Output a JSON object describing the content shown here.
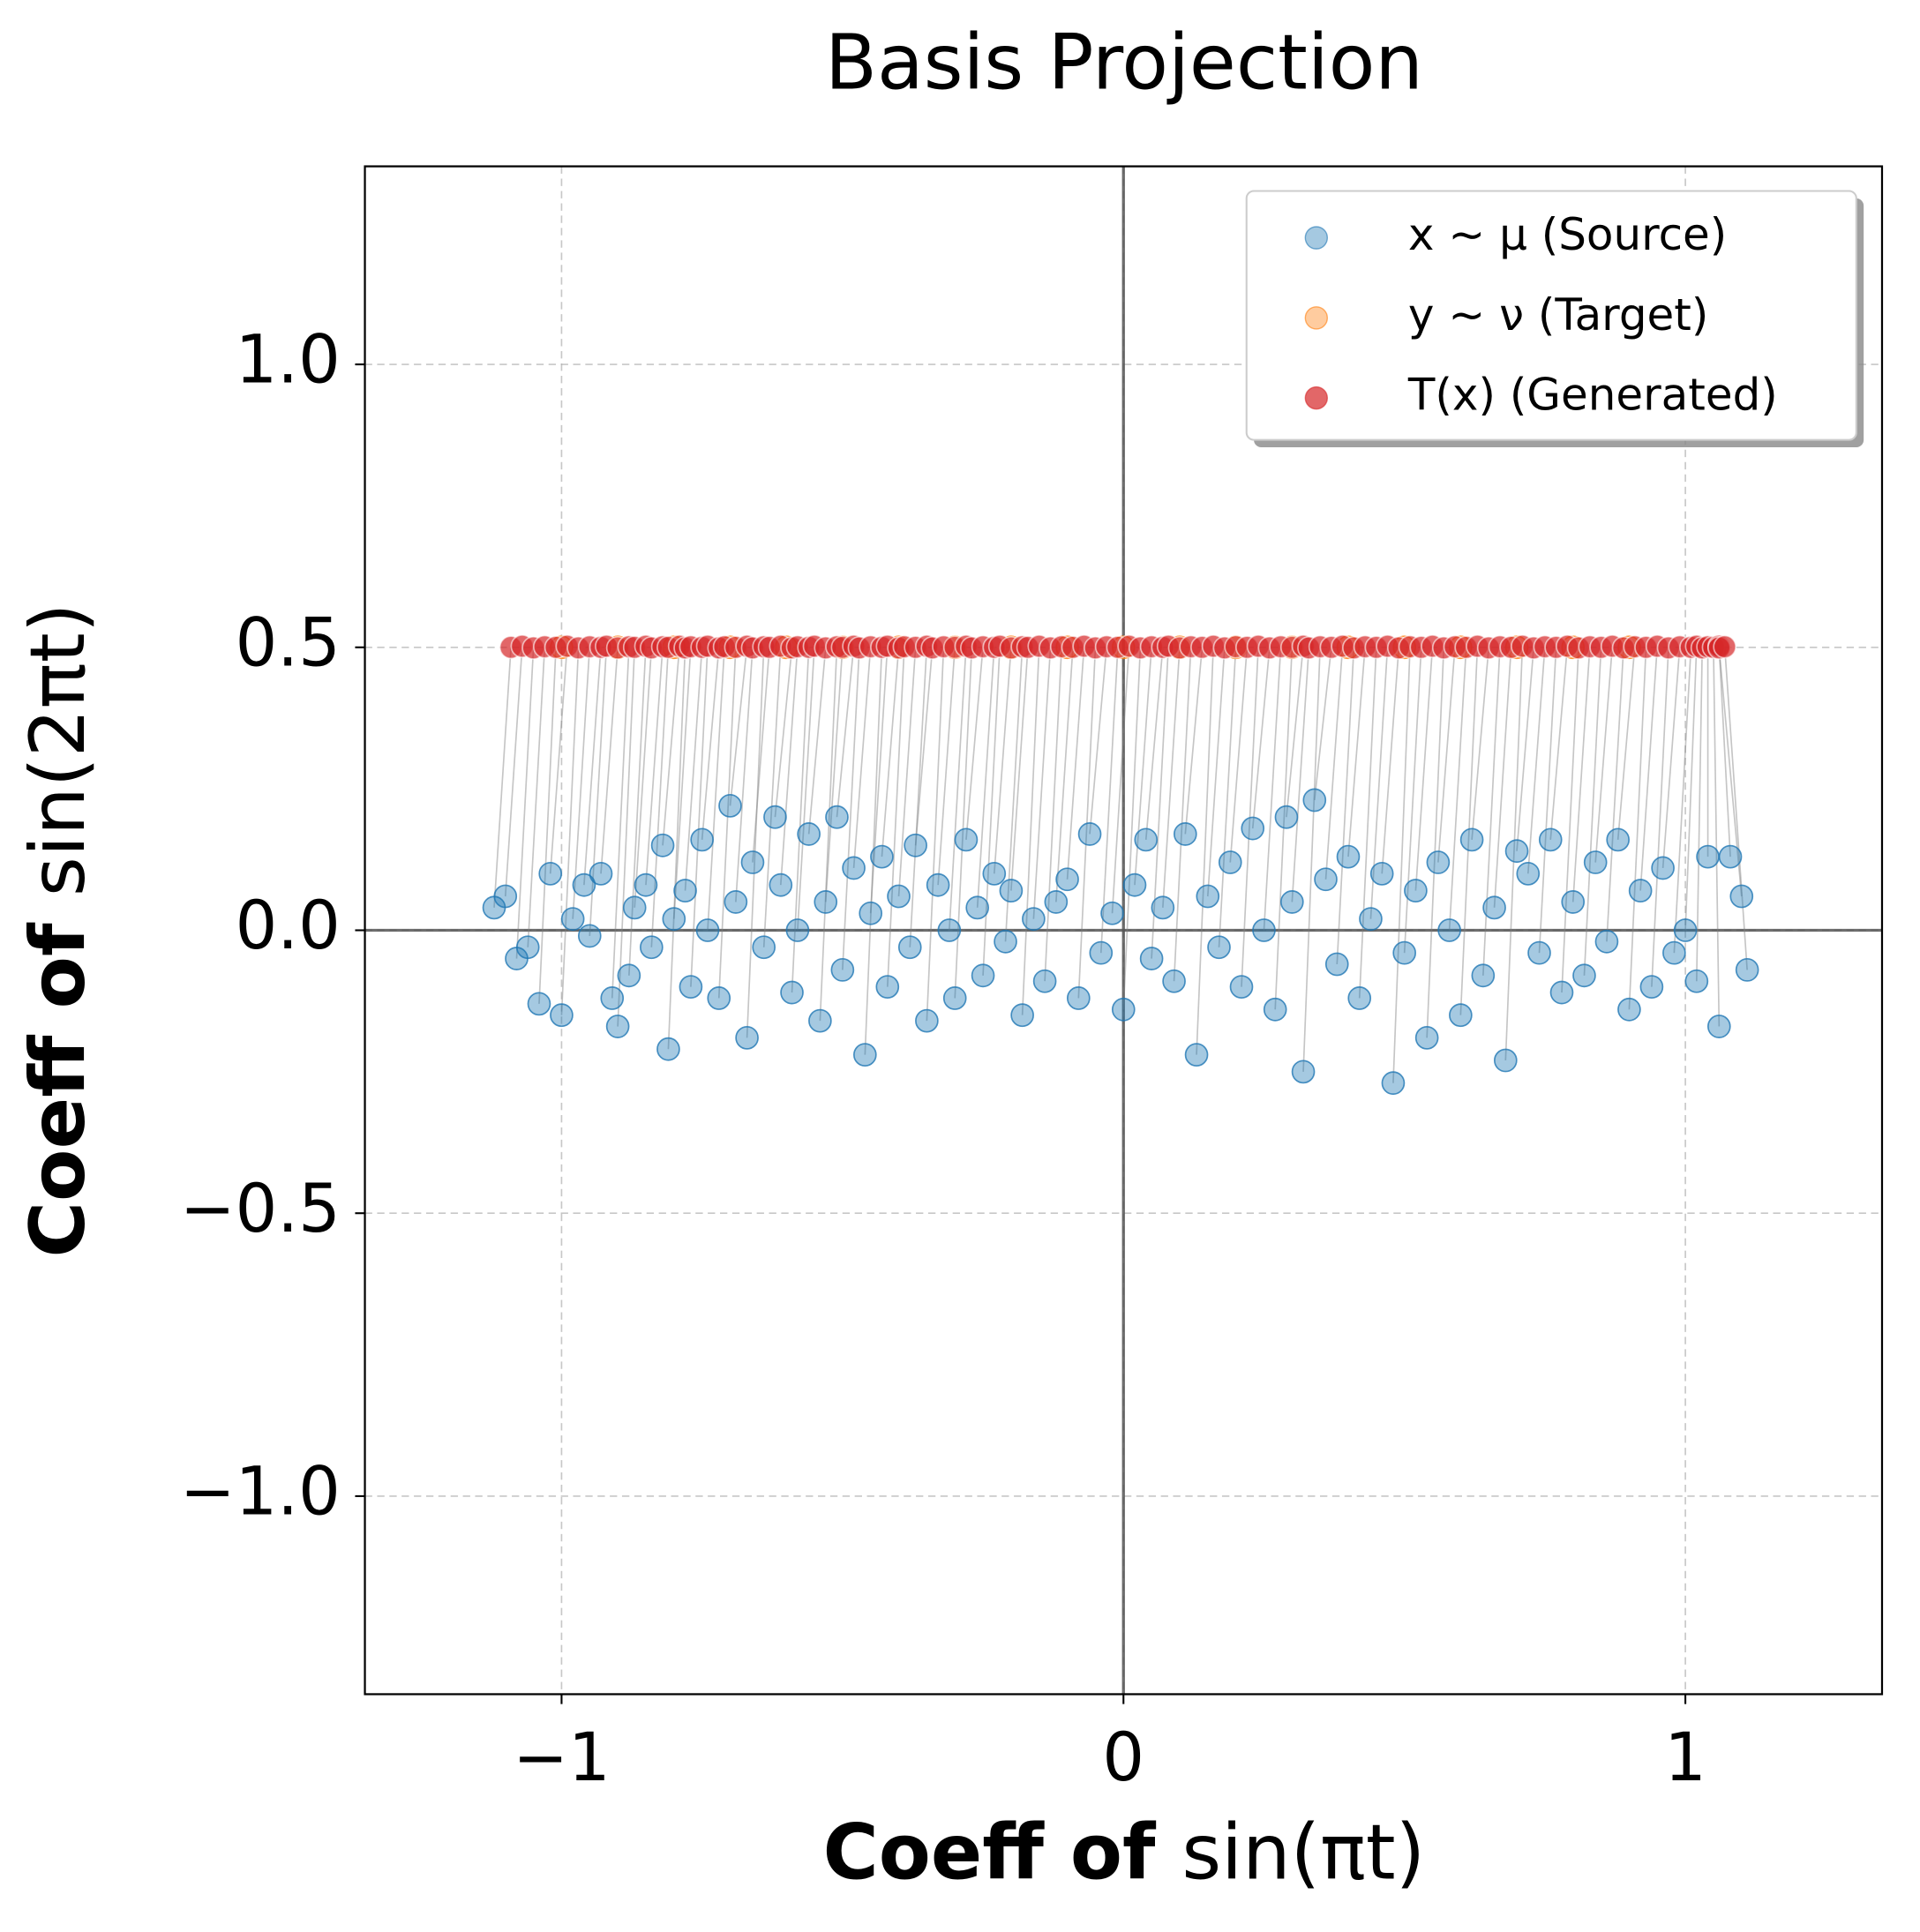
{
  "chart_data": {
    "type": "scatter",
    "title": "Basis Projection",
    "x_label": [
      "Coeff of ",
      "sin(πt)"
    ],
    "y_label": [
      "Coeff of ",
      "sin(2πt)"
    ],
    "xlim": [
      -1.35,
      1.35
    ],
    "ylim": [
      -1.35,
      1.35
    ],
    "xticks": [
      {
        "value": -1,
        "label": "−1"
      },
      0,
      1
    ],
    "yticks": [
      {
        "value": -1.0,
        "label": "−1.0"
      },
      {
        "value": -0.5,
        "label": "−0.5"
      },
      {
        "value": 0.0,
        "label": "0.0"
      },
      {
        "value": 0.5,
        "label": "0.5"
      },
      {
        "value": 1.0,
        "label": "1.0"
      }
    ],
    "grid": true,
    "legend": "upper right",
    "series": [
      {
        "name": "x ∼ μ (Source)",
        "color": "#1f77b4",
        "x": [
          -1.12,
          -1.1,
          -1.08,
          -1.06,
          -1.04,
          -1.02,
          -1.0,
          -0.98,
          -0.96,
          -0.95,
          -0.93,
          -0.91,
          -0.9,
          -0.88,
          -0.87,
          -0.85,
          -0.84,
          -0.82,
          -0.81,
          -0.8,
          -0.78,
          -0.77,
          -0.75,
          -0.74,
          -0.72,
          -0.7,
          -0.69,
          -0.67,
          -0.66,
          -0.64,
          -0.62,
          -0.61,
          -0.59,
          -0.58,
          -0.56,
          -0.54,
          -0.53,
          -0.51,
          -0.5,
          -0.48,
          -0.46,
          -0.45,
          -0.43,
          -0.42,
          -0.4,
          -0.38,
          -0.37,
          -0.35,
          -0.33,
          -0.31,
          -0.3,
          -0.28,
          -0.26,
          -0.25,
          -0.23,
          -0.21,
          -0.2,
          -0.18,
          -0.16,
          -0.14,
          -0.12,
          -0.1,
          -0.08,
          -0.06,
          -0.04,
          -0.02,
          0.0,
          0.02,
          0.04,
          0.05,
          0.07,
          0.09,
          0.11,
          0.13,
          0.15,
          0.17,
          0.19,
          0.21,
          0.23,
          0.25,
          0.27,
          0.29,
          0.3,
          0.32,
          0.34,
          0.36,
          0.38,
          0.4,
          0.42,
          0.44,
          0.46,
          0.48,
          0.5,
          0.52,
          0.54,
          0.56,
          0.58,
          0.6,
          0.62,
          0.64,
          0.66,
          0.68,
          0.7,
          0.72,
          0.74,
          0.76,
          0.78,
          0.8,
          0.82,
          0.84,
          0.86,
          0.88,
          0.9,
          0.92,
          0.94,
          0.96,
          0.98,
          1.0,
          1.02,
          1.04,
          1.06,
          1.08,
          1.1,
          1.11
        ],
        "values": [
          0.04,
          0.06,
          -0.05,
          -0.03,
          -0.13,
          0.1,
          -0.15,
          0.02,
          0.08,
          -0.01,
          0.1,
          -0.12,
          -0.17,
          -0.08,
          0.04,
          0.08,
          -0.03,
          0.15,
          -0.21,
          0.02,
          0.07,
          -0.1,
          0.16,
          0.0,
          -0.12,
          0.22,
          0.05,
          -0.19,
          0.12,
          -0.03,
          0.2,
          0.08,
          -0.11,
          0.0,
          0.17,
          -0.16,
          0.05,
          0.2,
          -0.07,
          0.11,
          -0.22,
          0.03,
          0.13,
          -0.1,
          0.06,
          -0.03,
          0.15,
          -0.16,
          0.08,
          0.0,
          -0.12,
          0.16,
          0.04,
          -0.08,
          0.1,
          -0.02,
          0.07,
          -0.15,
          0.02,
          -0.09,
          0.05,
          0.09,
          -0.12,
          0.17,
          -0.04,
          0.03,
          -0.14,
          0.08,
          0.16,
          -0.05,
          0.04,
          -0.09,
          0.17,
          -0.22,
          0.06,
          -0.03,
          0.12,
          -0.1,
          0.18,
          0.0,
          -0.14,
          0.2,
          0.05,
          -0.25,
          0.23,
          0.09,
          -0.06,
          0.13,
          -0.12,
          0.02,
          0.1,
          -0.27,
          -0.04,
          0.07,
          -0.19,
          0.12,
          0.0,
          -0.15,
          0.16,
          -0.08,
          0.04,
          -0.23,
          0.14,
          0.1,
          -0.04,
          0.16,
          -0.11,
          0.05,
          -0.08,
          0.12,
          -0.02,
          0.16,
          -0.14,
          0.07,
          -0.1,
          0.11,
          -0.04,
          0.0,
          -0.09,
          0.13,
          -0.17,
          0.13,
          0.06,
          -0.07
        ]
      },
      {
        "name": "y ∼ ν (Target)",
        "color": "#ff7f0e",
        "x": [
          -1.0,
          -0.9,
          -0.8,
          -0.7,
          -0.6,
          -0.5,
          -0.4,
          -0.3,
          -0.2,
          -0.1,
          0.0,
          0.1,
          0.2,
          0.3,
          0.4,
          0.5,
          0.6,
          0.7,
          0.8,
          0.9
        ],
        "values": [
          0.5,
          0.5,
          0.5,
          0.5,
          0.5,
          0.5,
          0.5,
          0.5,
          0.5,
          0.5,
          0.5,
          0.5,
          0.5,
          0.5,
          0.5,
          0.5,
          0.5,
          0.5,
          0.5,
          0.5
        ]
      },
      {
        "name": "T(x) (Generated)",
        "color": "#d62728",
        "x": [
          -1.09,
          -1.07,
          -1.05,
          -1.03,
          -1.01,
          -0.99,
          -0.97,
          -0.95,
          -0.93,
          -0.92,
          -0.9,
          -0.88,
          -0.87,
          -0.85,
          -0.84,
          -0.82,
          -0.81,
          -0.79,
          -0.78,
          -0.77,
          -0.75,
          -0.74,
          -0.72,
          -0.71,
          -0.69,
          -0.67,
          -0.66,
          -0.64,
          -0.63,
          -0.61,
          -0.59,
          -0.58,
          -0.56,
          -0.55,
          -0.53,
          -0.51,
          -0.5,
          -0.48,
          -0.47,
          -0.45,
          -0.43,
          -0.42,
          -0.4,
          -0.39,
          -0.37,
          -0.35,
          -0.34,
          -0.32,
          -0.3,
          -0.28,
          -0.27,
          -0.25,
          -0.23,
          -0.22,
          -0.2,
          -0.18,
          -0.17,
          -0.15,
          -0.13,
          -0.11,
          -0.09,
          -0.07,
          -0.05,
          -0.03,
          -0.01,
          0.01,
          0.03,
          0.05,
          0.07,
          0.08,
          0.1,
          0.12,
          0.14,
          0.16,
          0.18,
          0.2,
          0.22,
          0.24,
          0.26,
          0.28,
          0.3,
          0.32,
          0.33,
          0.35,
          0.37,
          0.39,
          0.41,
          0.43,
          0.45,
          0.47,
          0.49,
          0.51,
          0.53,
          0.55,
          0.57,
          0.59,
          0.61,
          0.63,
          0.65,
          0.67,
          0.69,
          0.71,
          0.73,
          0.75,
          0.77,
          0.79,
          0.81,
          0.83,
          0.85,
          0.87,
          0.89,
          0.91,
          0.93,
          0.95,
          0.97,
          0.99,
          1.01,
          1.02,
          1.03,
          1.04,
          1.05,
          1.06,
          1.06,
          1.07
        ],
        "values": [
          0.5,
          0.502,
          0.499,
          0.501,
          0.5,
          0.502,
          0.499,
          0.501,
          0.5,
          0.502,
          0.499,
          0.501,
          0.5,
          0.502,
          0.499,
          0.501,
          0.5,
          0.502,
          0.499,
          0.501,
          0.5,
          0.502,
          0.499,
          0.501,
          0.5,
          0.502,
          0.499,
          0.501,
          0.5,
          0.502,
          0.499,
          0.501,
          0.5,
          0.502,
          0.499,
          0.501,
          0.5,
          0.502,
          0.499,
          0.501,
          0.5,
          0.502,
          0.499,
          0.501,
          0.5,
          0.502,
          0.499,
          0.501,
          0.5,
          0.502,
          0.499,
          0.501,
          0.5,
          0.502,
          0.499,
          0.501,
          0.5,
          0.502,
          0.499,
          0.501,
          0.5,
          0.502,
          0.499,
          0.501,
          0.5,
          0.502,
          0.499,
          0.501,
          0.5,
          0.502,
          0.499,
          0.501,
          0.5,
          0.502,
          0.499,
          0.501,
          0.5,
          0.502,
          0.499,
          0.501,
          0.5,
          0.502,
          0.499,
          0.501,
          0.5,
          0.502,
          0.499,
          0.501,
          0.5,
          0.502,
          0.499,
          0.501,
          0.5,
          0.502,
          0.499,
          0.501,
          0.5,
          0.502,
          0.499,
          0.501,
          0.5,
          0.502,
          0.499,
          0.501,
          0.5,
          0.502,
          0.499,
          0.501,
          0.5,
          0.502,
          0.499,
          0.501,
          0.5,
          0.502,
          0.499,
          0.501,
          0.5,
          0.502,
          0.499,
          0.501,
          0.5,
          0.502,
          0.499,
          0.501
        ]
      }
    ]
  }
}
